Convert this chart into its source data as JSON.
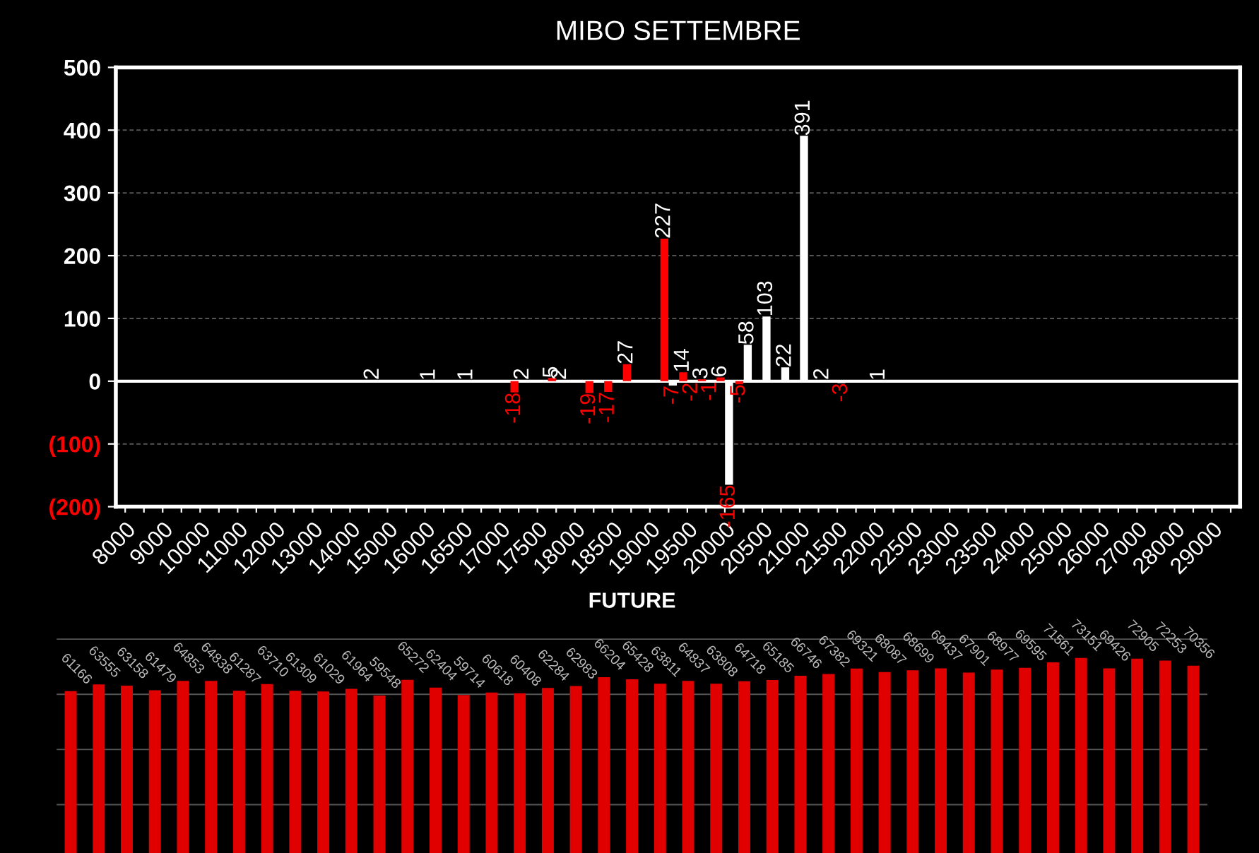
{
  "chart_data": [
    {
      "type": "bar",
      "title": "MIBO SETTEMBRE",
      "categories": [
        "8000",
        null,
        "9000",
        null,
        "10000",
        null,
        "11000",
        null,
        "12000",
        null,
        "13000",
        null,
        "14000",
        null,
        "15000",
        null,
        "16000",
        null,
        "16500",
        null,
        "17000",
        null,
        "17500",
        null,
        "18000",
        null,
        "18500",
        null,
        "19000",
        null,
        "19500",
        null,
        "20000",
        null,
        "20500",
        null,
        "21000",
        null,
        "21500",
        null,
        "22000",
        null,
        "22500",
        null,
        "23000",
        null,
        "23500",
        null,
        "24000",
        null,
        "25000",
        null,
        "26000",
        null,
        "27000",
        null,
        "28000",
        null,
        "29000",
        null
      ],
      "series": [
        {
          "color": "#ff0000",
          "values": [
            null,
            null,
            null,
            null,
            null,
            null,
            null,
            null,
            null,
            null,
            null,
            null,
            null,
            null,
            null,
            null,
            null,
            null,
            null,
            null,
            null,
            -18,
            null,
            5,
            null,
            -19,
            -17,
            27,
            null,
            227,
            14,
            3,
            6,
            -5,
            null,
            null,
            null,
            null,
            null,
            null,
            null,
            null,
            null,
            null,
            null,
            null,
            null,
            null,
            null,
            null,
            null,
            null,
            null,
            null,
            null,
            null,
            null,
            null,
            null,
            null
          ]
        },
        {
          "color": "#ffffff",
          "values": [
            null,
            null,
            null,
            null,
            null,
            null,
            null,
            null,
            null,
            null,
            null,
            null,
            null,
            2,
            null,
            null,
            1,
            null,
            1,
            null,
            null,
            2,
            null,
            2,
            null,
            null,
            null,
            null,
            null,
            -7,
            -2,
            -1,
            -165,
            58,
            103,
            22,
            391,
            2,
            -3,
            null,
            1,
            null,
            null,
            null,
            null,
            null,
            null,
            null,
            null,
            null,
            null,
            null,
            null,
            null,
            null,
            null,
            null,
            null,
            null,
            null
          ]
        }
      ],
      "ylim": [
        -200,
        500
      ],
      "yticks": [
        500,
        400,
        300,
        200,
        100,
        0,
        {
          "value": -100,
          "label": "(100)"
        },
        {
          "value": -200,
          "label": "(200)"
        }
      ],
      "grid": "y",
      "data_labels": true
    },
    {
      "type": "bar",
      "title": "FUTURE",
      "categories": [
        null,
        null,
        null,
        null,
        null,
        null,
        null,
        null,
        null,
        null,
        null,
        null,
        null,
        null,
        null,
        null,
        null,
        null,
        null,
        null,
        null,
        null,
        null,
        null,
        null,
        null,
        null,
        null,
        null,
        null,
        null,
        null,
        null,
        null,
        null,
        null,
        null,
        null,
        null,
        null,
        null
      ],
      "values": [
        61166,
        63555,
        63158,
        61479,
        64853,
        64838,
        61287,
        63710,
        61309,
        61029,
        61964,
        59548,
        65272,
        62404,
        59714,
        60618,
        60408,
        62284,
        62983,
        66204,
        65428,
        63811,
        64837,
        63808,
        64718,
        65185,
        66746,
        67382,
        69321,
        68087,
        68699,
        69437,
        67901,
        68977,
        69595,
        71561,
        73151,
        69426,
        72905,
        72253,
        70356
      ],
      "color": "#e00000",
      "grid": "y",
      "tick_labels": false,
      "data_labels": true
    }
  ]
}
